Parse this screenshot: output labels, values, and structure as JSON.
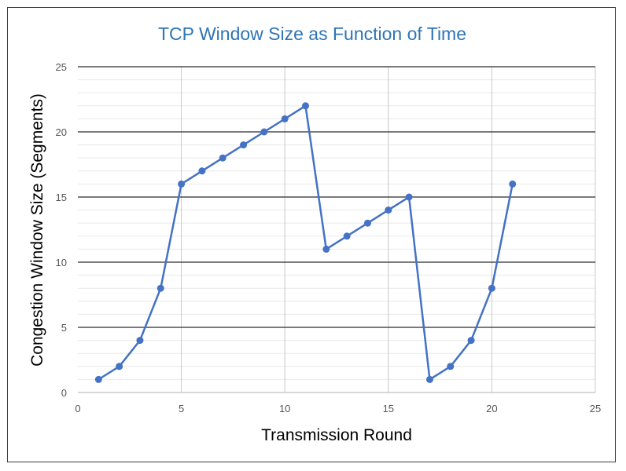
{
  "chart_data": {
    "type": "line",
    "title": "TCP Window Size as Function of Time",
    "xlabel": "Transmission Round",
    "ylabel": "Congestion Window Size (Segments)",
    "xlim": [
      0,
      25
    ],
    "ylim": [
      0,
      25
    ],
    "xticks": [
      0,
      5,
      10,
      15,
      20,
      25
    ],
    "yticks": [
      0,
      5,
      10,
      15,
      20,
      25
    ],
    "grid": true,
    "legend": "none",
    "series": [
      {
        "color": "#4472c4",
        "x": [
          1,
          2,
          3,
          4,
          5,
          6,
          7,
          8,
          9,
          10,
          11,
          12,
          13,
          14,
          15,
          16,
          17,
          18,
          19,
          20,
          21
        ],
        "y": [
          1,
          2,
          4,
          8,
          16,
          17,
          18,
          19,
          20,
          21,
          22,
          11,
          12,
          13,
          14,
          15,
          1,
          2,
          4,
          8,
          16
        ]
      }
    ]
  }
}
